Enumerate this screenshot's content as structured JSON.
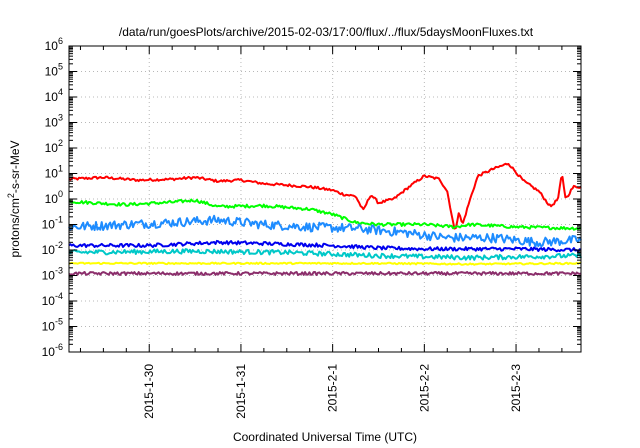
{
  "chart_data": {
    "type": "line",
    "title": "/data/run/goesPlots/archive/2015-02-03/17:00/flux/../flux/5daysMoonFluxes.txt",
    "xlabel": "Coordinated Universal Time (UTC)",
    "ylabel": "protons/cm²-s-sr-MeV",
    "ylabel_parts": {
      "prefix": "protons/cm",
      "sup": "2",
      "suffix": "-s-sr-MeV"
    },
    "y_scale": "log",
    "ylim": [
      1e-06,
      1000000.0
    ],
    "y_ticks": [
      {
        "exp": "-6"
      },
      {
        "exp": "-5"
      },
      {
        "exp": "-4"
      },
      {
        "exp": "-3"
      },
      {
        "exp": "-2"
      },
      {
        "exp": "-1"
      },
      {
        "exp": "0"
      },
      {
        "exp": "1"
      },
      {
        "exp": "2"
      },
      {
        "exp": "3"
      },
      {
        "exp": "4"
      },
      {
        "exp": "5"
      },
      {
        "exp": "6"
      }
    ],
    "xlim": [
      "2015-01-29T03:00",
      "2015-02-03T17:00"
    ],
    "x_ticks": [
      "2015-1-30",
      "2015-1-31",
      "2015-2-1",
      "2015-2-2",
      "2015-2-3"
    ],
    "x_tick_dates": [
      "2015-01-30T00:00",
      "2015-01-31T00:00",
      "2015-02-01T00:00",
      "2015-02-02T00:00",
      "2015-02-03T00:00"
    ],
    "grid": true,
    "legend": "none",
    "series": [
      {
        "color": "#ff0000",
        "noise": 0.05,
        "points": [
          [
            "2015-01-29T03:00",
            6
          ],
          [
            "2015-01-29T12:00",
            7
          ],
          [
            "2015-01-29T21:00",
            5.5
          ],
          [
            "2015-01-30T06:00",
            6
          ],
          [
            "2015-01-30T12:00",
            7
          ],
          [
            "2015-01-30T18:00",
            5
          ],
          [
            "2015-01-31T00:00",
            5.5
          ],
          [
            "2015-01-31T06:00",
            4
          ],
          [
            "2015-01-31T12:00",
            3.5
          ],
          [
            "2015-01-31T18:00",
            3
          ],
          [
            "2015-02-01T00:00",
            2.2
          ],
          [
            "2015-02-01T03:00",
            1.5
          ],
          [
            "2015-02-01T06:00",
            1.3
          ],
          [
            "2015-02-01T08:00",
            0.35
          ],
          [
            "2015-02-01T10:00",
            1.5
          ],
          [
            "2015-02-01T12:00",
            0.7
          ],
          [
            "2015-02-01T16:00",
            1.0
          ],
          [
            "2015-02-01T20:00",
            3
          ],
          [
            "2015-02-02T00:00",
            8
          ],
          [
            "2015-02-02T04:00",
            6
          ],
          [
            "2015-02-02T06:00",
            2
          ],
          [
            "2015-02-02T08:00",
            0.05
          ],
          [
            "2015-02-02T09:00",
            0.3
          ],
          [
            "2015-02-02T10:00",
            0.1
          ],
          [
            "2015-02-02T12:00",
            1
          ],
          [
            "2015-02-02T14:00",
            8
          ],
          [
            "2015-02-02T18:00",
            15
          ],
          [
            "2015-02-02T22:00",
            25
          ],
          [
            "2015-02-03T02:00",
            5
          ],
          [
            "2015-02-03T06:00",
            2
          ],
          [
            "2015-02-03T09:00",
            0.5
          ],
          [
            "2015-02-03T11:00",
            1
          ],
          [
            "2015-02-03T12:00",
            10
          ],
          [
            "2015-02-03T13:00",
            1
          ],
          [
            "2015-02-03T15:00",
            3
          ],
          [
            "2015-02-03T17:00",
            3
          ]
        ]
      },
      {
        "color": "#00ff00",
        "noise": 0.06,
        "points": [
          [
            "2015-01-29T03:00",
            0.8
          ],
          [
            "2015-01-29T18:00",
            0.6
          ],
          [
            "2015-01-30T06:00",
            0.75
          ],
          [
            "2015-01-30T12:00",
            0.9
          ],
          [
            "2015-01-30T18:00",
            0.5
          ],
          [
            "2015-01-31T06:00",
            0.55
          ],
          [
            "2015-01-31T18:00",
            0.4
          ],
          [
            "2015-02-01T00:00",
            0.25
          ],
          [
            "2015-02-01T06:00",
            0.12
          ],
          [
            "2015-02-01T12:00",
            0.1
          ],
          [
            "2015-02-02T00:00",
            0.1
          ],
          [
            "2015-02-02T08:00",
            0.08
          ],
          [
            "2015-02-02T12:00",
            0.1
          ],
          [
            "2015-02-03T00:00",
            0.08
          ],
          [
            "2015-02-03T17:00",
            0.07
          ]
        ]
      },
      {
        "color": "#1e8cff",
        "noise": 0.18,
        "points": [
          [
            "2015-01-29T03:00",
            0.08
          ],
          [
            "2015-01-29T18:00",
            0.1
          ],
          [
            "2015-01-30T06:00",
            0.12
          ],
          [
            "2015-01-30T18:00",
            0.15
          ],
          [
            "2015-01-31T06:00",
            0.1
          ],
          [
            "2015-01-31T18:00",
            0.08
          ],
          [
            "2015-02-01T06:00",
            0.07
          ],
          [
            "2015-02-01T18:00",
            0.05
          ],
          [
            "2015-02-02T06:00",
            0.03
          ],
          [
            "2015-02-02T18:00",
            0.03
          ],
          [
            "2015-02-03T06:00",
            0.02
          ],
          [
            "2015-02-03T17:00",
            0.025
          ]
        ]
      },
      {
        "color": "#0000ee",
        "noise": 0.07,
        "points": [
          [
            "2015-01-29T03:00",
            0.015
          ],
          [
            "2015-01-30T00:00",
            0.015
          ],
          [
            "2015-01-30T18:00",
            0.02
          ],
          [
            "2015-01-31T06:00",
            0.018
          ],
          [
            "2015-02-01T00:00",
            0.015
          ],
          [
            "2015-02-01T12:00",
            0.012
          ],
          [
            "2015-02-02T00:00",
            0.011
          ],
          [
            "2015-02-03T00:00",
            0.011
          ],
          [
            "2015-02-03T17:00",
            0.01
          ]
        ]
      },
      {
        "color": "#00c8c8",
        "noise": 0.09,
        "points": [
          [
            "2015-01-29T03:00",
            0.008
          ],
          [
            "2015-01-30T12:00",
            0.009
          ],
          [
            "2015-01-31T12:00",
            0.008
          ],
          [
            "2015-02-01T12:00",
            0.006
          ],
          [
            "2015-02-02T12:00",
            0.005
          ],
          [
            "2015-02-03T17:00",
            0.006
          ]
        ]
      },
      {
        "color": "#ffff00",
        "noise": 0.03,
        "points": [
          [
            "2015-01-29T03:00",
            0.003
          ],
          [
            "2015-01-31T00:00",
            0.003
          ],
          [
            "2015-02-01T12:00",
            0.003
          ],
          [
            "2015-02-02T12:00",
            0.0028
          ],
          [
            "2015-02-03T17:00",
            0.003
          ]
        ]
      },
      {
        "color": "#8b2e6b",
        "noise": 0.06,
        "points": [
          [
            "2015-01-29T03:00",
            0.0012
          ],
          [
            "2015-01-31T00:00",
            0.0012
          ],
          [
            "2015-02-01T12:00",
            0.0012
          ],
          [
            "2015-02-02T12:00",
            0.0012
          ],
          [
            "2015-02-03T17:00",
            0.0012
          ]
        ]
      }
    ]
  }
}
